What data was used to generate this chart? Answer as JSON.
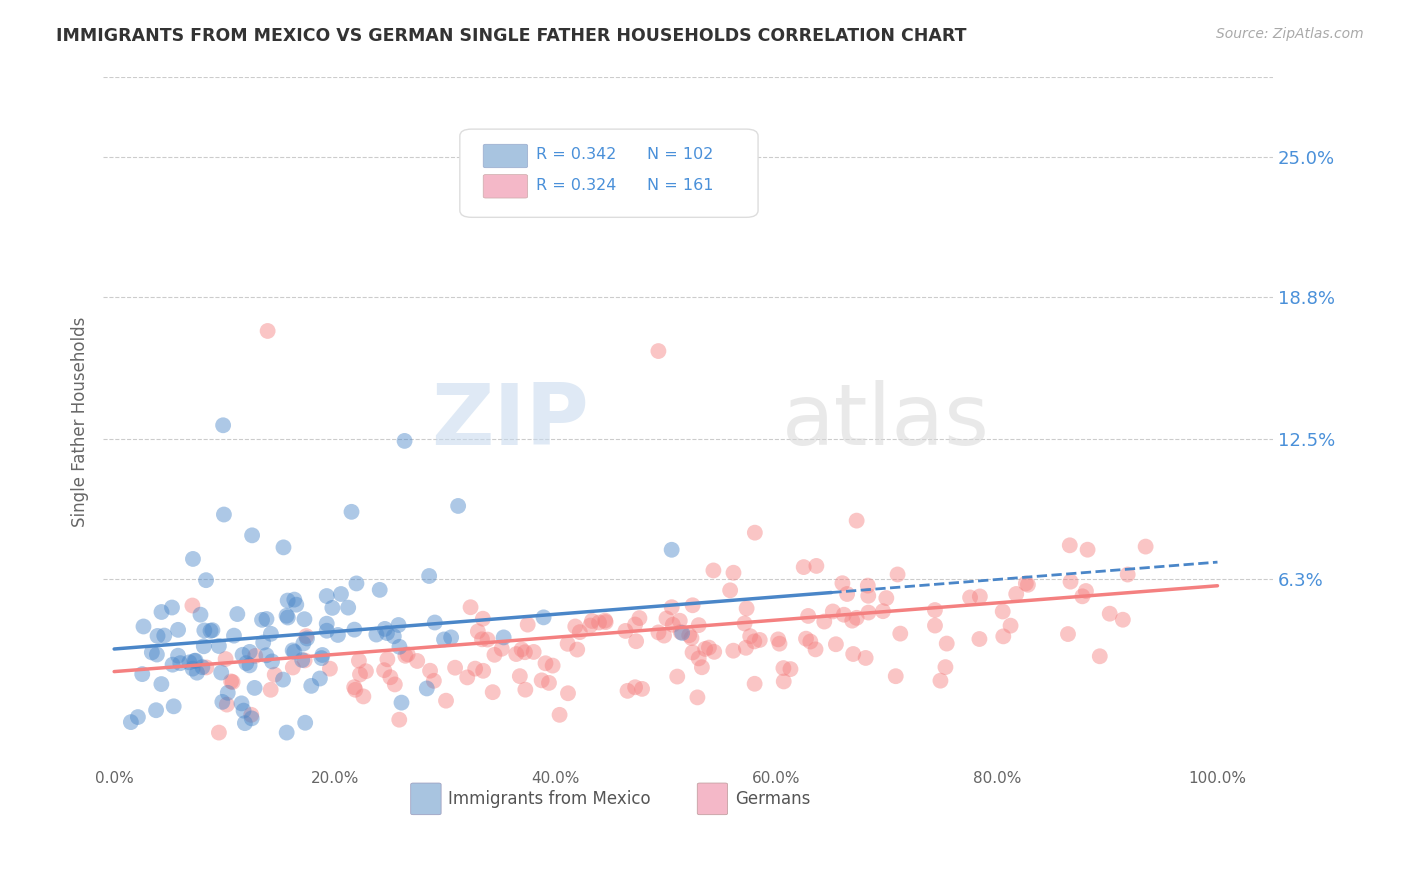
{
  "title": "IMMIGRANTS FROM MEXICO VS GERMAN SINGLE FATHER HOUSEHOLDS CORRELATION CHART",
  "source": "Source: ZipAtlas.com",
  "ylabel": "Single Father Households",
  "yticks": [
    "25.0%",
    "18.8%",
    "12.5%",
    "6.3%"
  ],
  "ytick_vals": [
    0.25,
    0.188,
    0.125,
    0.063
  ],
  "legend_text": [
    [
      "R = 0.342",
      "N = 102"
    ],
    [
      "R = 0.324",
      "N = 161"
    ]
  ],
  "legend_colors": [
    "#a8c4e0",
    "#f4b8c8"
  ],
  "legend_labels": [
    "Immigrants from Mexico",
    "Germans"
  ],
  "blue_color": "#4a86c8",
  "pink_color": "#f48080",
  "text_color_blue": "#4a90d9",
  "background_color": "#ffffff",
  "watermark_zip": "ZIP",
  "watermark_atlas": "atlas",
  "seed": 42,
  "n_blue": 102,
  "n_pink": 161,
  "xmin": 0.0,
  "xmax": 1.0,
  "ymin": -0.02,
  "ymax": 0.285
}
